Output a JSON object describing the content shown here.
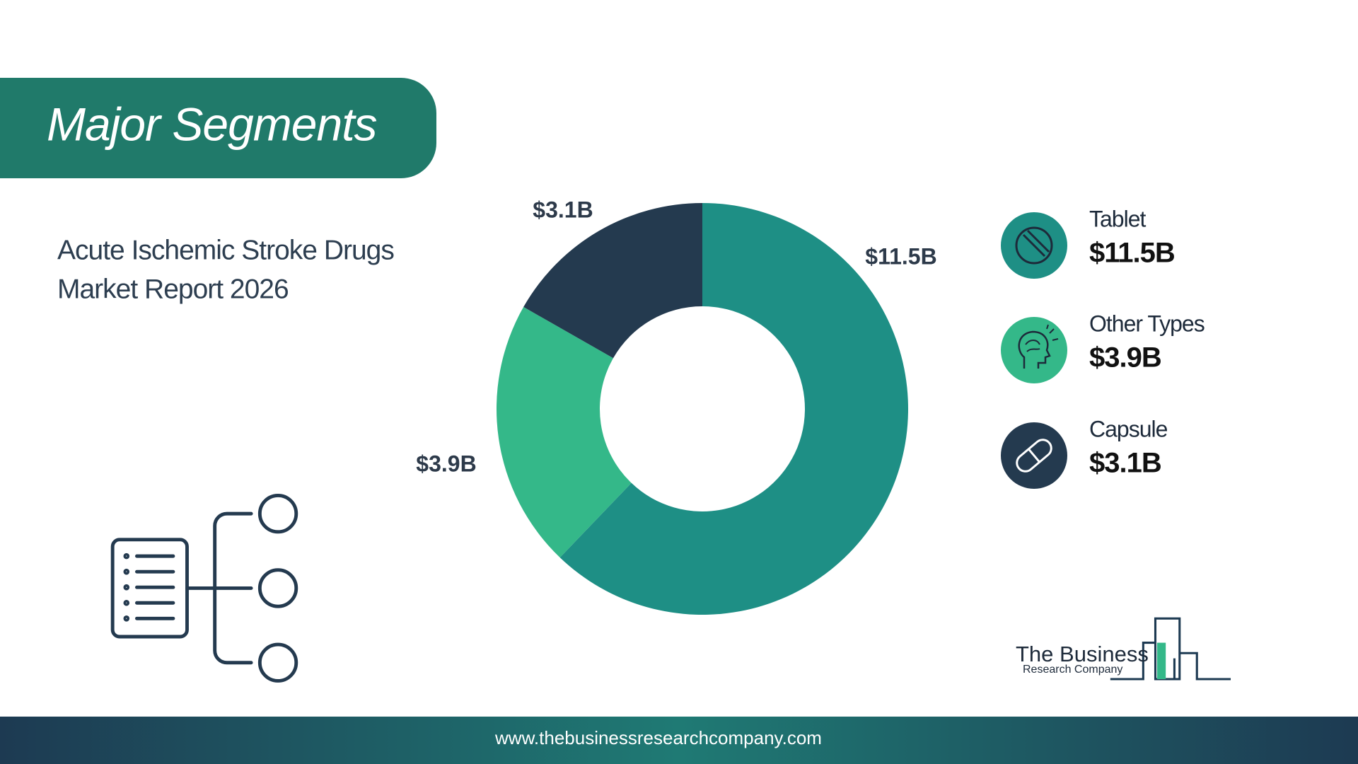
{
  "header": {
    "title": "Major Segments"
  },
  "subtitle": [
    "Acute Ischemic Stroke Drugs",
    "Market Report 2026"
  ],
  "chart_data": {
    "type": "donut",
    "categories": [
      "Tablet",
      "Other Types",
      "Capsule"
    ],
    "values": [
      11.5,
      3.9,
      3.1
    ],
    "value_labels": [
      "$11.5B",
      "$3.9B",
      "$3.1B"
    ],
    "colors": [
      "#1e8f85",
      "#34b889",
      "#243a4f"
    ]
  },
  "logo": [
    "The Business",
    "Research Company"
  ],
  "footer": {
    "url": "www.thebusinessresearchcompany.com"
  }
}
